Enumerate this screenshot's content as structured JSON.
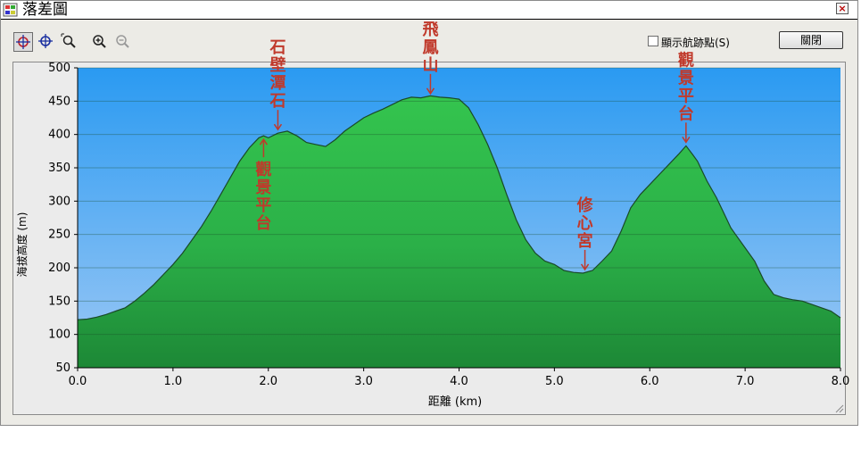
{
  "window": {
    "title": "落差圖",
    "close_glyph": "×"
  },
  "toolbar": {
    "tools": [
      "crosshair-tool",
      "move-tool",
      "zoom-box-tool",
      "zoom-in-tool",
      "zoom-out-tool"
    ],
    "show_waypoints_label": "顯示航跡點(S)",
    "show_waypoints_checked": false,
    "close_button_label": "關閉"
  },
  "chart_data": {
    "type": "area",
    "xlabel": "距離 (km)",
    "ylabel": "海拔高度 (m)",
    "xlim": [
      0,
      8
    ],
    "ylim": [
      50,
      500
    ],
    "x_ticks": [
      "0.0",
      "1.0",
      "2.0",
      "3.0",
      "4.0",
      "5.0",
      "6.0",
      "7.0",
      "8.0"
    ],
    "y_ticks": [
      "50",
      "100",
      "150",
      "200",
      "250",
      "300",
      "350",
      "400",
      "450",
      "500"
    ],
    "grid": true,
    "colors": {
      "sky_top": "#2a9af2",
      "sky_bottom": "#9cc8f4",
      "fill_top": "#2ebf4a",
      "fill_bottom": "#1f8a38",
      "outline": "#1a4a28",
      "annotation": "#c0392b"
    },
    "x": [
      0.0,
      0.1,
      0.2,
      0.3,
      0.4,
      0.5,
      0.6,
      0.7,
      0.8,
      0.9,
      1.0,
      1.1,
      1.2,
      1.3,
      1.4,
      1.5,
      1.6,
      1.7,
      1.8,
      1.9,
      1.95,
      2.0,
      2.1,
      2.2,
      2.3,
      2.4,
      2.5,
      2.6,
      2.7,
      2.8,
      2.9,
      3.0,
      3.1,
      3.2,
      3.3,
      3.4,
      3.5,
      3.6,
      3.7,
      3.8,
      3.9,
      4.0,
      4.1,
      4.2,
      4.3,
      4.4,
      4.5,
      4.6,
      4.7,
      4.8,
      4.9,
      5.0,
      5.1,
      5.2,
      5.3,
      5.4,
      5.5,
      5.6,
      5.7,
      5.8,
      5.9,
      6.0,
      6.1,
      6.2,
      6.3,
      6.38,
      6.45,
      6.5,
      6.6,
      6.7,
      6.8,
      6.85,
      6.9,
      7.0,
      7.1,
      7.2,
      7.3,
      7.4,
      7.5,
      7.6,
      7.7,
      7.8,
      7.9,
      8.0
    ],
    "y": [
      122,
      123,
      126,
      130,
      135,
      140,
      150,
      162,
      175,
      190,
      205,
      222,
      242,
      262,
      285,
      310,
      335,
      360,
      380,
      395,
      398,
      395,
      402,
      405,
      398,
      388,
      385,
      382,
      392,
      405,
      415,
      425,
      432,
      438,
      445,
      452,
      456,
      455,
      458,
      456,
      455,
      453,
      440,
      415,
      385,
      350,
      310,
      272,
      242,
      222,
      210,
      205,
      196,
      193,
      192,
      196,
      210,
      225,
      255,
      290,
      310,
      325,
      340,
      355,
      370,
      383,
      370,
      360,
      330,
      305,
      275,
      260,
      250,
      230,
      210,
      180,
      160,
      155,
      152,
      150,
      145,
      140,
      135,
      125
    ],
    "annotations": [
      {
        "text": "石壁潭石",
        "x": 2.1,
        "y": 402,
        "position": "above"
      },
      {
        "text": "觀景平台",
        "x": 1.95,
        "y": 398,
        "position": "below"
      },
      {
        "text": "飛鳳山",
        "x": 3.7,
        "y": 456,
        "position": "above"
      },
      {
        "text": "修心宮",
        "x": 5.32,
        "y": 192,
        "position": "above"
      },
      {
        "text": "觀景平台",
        "x": 6.38,
        "y": 383,
        "position": "above"
      }
    ]
  }
}
